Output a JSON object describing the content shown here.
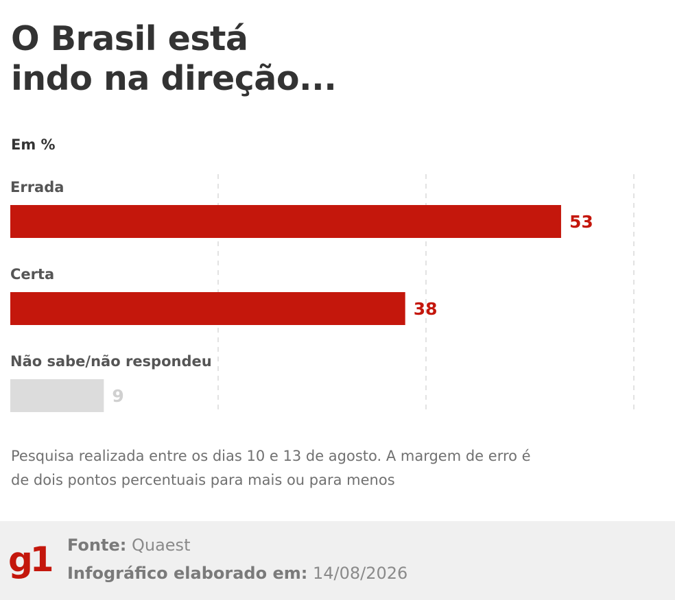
{
  "title_line1": "O Brasil está",
  "title_line2": "indo na direção...",
  "unit_label": "Em %",
  "chart_data": {
    "type": "bar",
    "orientation": "horizontal",
    "categories": [
      "Errada",
      "Certa",
      "Não sabe/não respondeu"
    ],
    "values": [
      53,
      38,
      9
    ],
    "value_labels": [
      "53",
      "38",
      "9"
    ],
    "xlim": [
      0,
      60
    ],
    "grid": true,
    "axis_labels_visible": false,
    "colors": [
      "#c4170c",
      "#c4170c",
      "#dcdcdc"
    ],
    "label_colors": [
      "#c4170c",
      "#c4170c",
      "#d0d0d0"
    ]
  },
  "note": "Pesquisa realizada entre os dias 10 e 13 de agosto. A margem de erro é de dois pontos percentuais para mais ou para menos",
  "footer": {
    "logo": "g1",
    "logo_color": "#c4170c",
    "source_label": "Fonte:",
    "source_value": "Quaest",
    "date_label": "Infográfico elaborado em:",
    "date_value": "14/08/2026"
  }
}
